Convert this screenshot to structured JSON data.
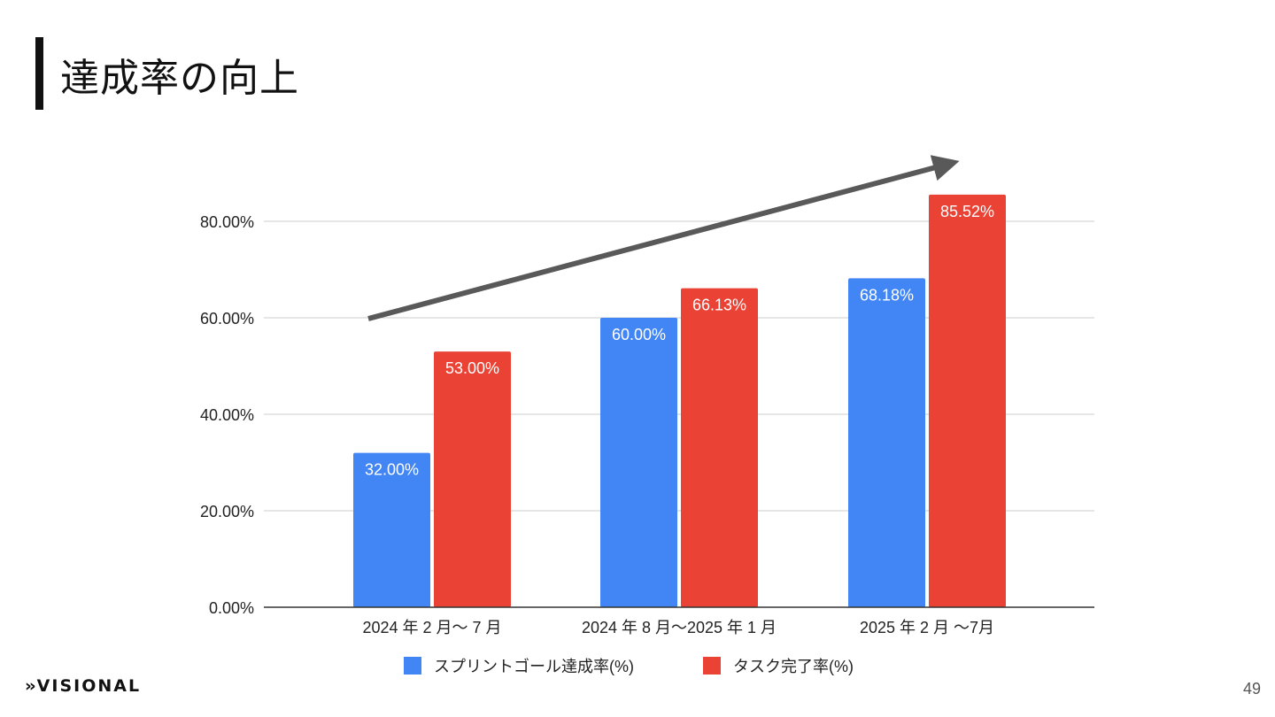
{
  "slide": {
    "title": "達成率の向上",
    "page_number": "49",
    "logo_text": "VISIONAL"
  },
  "colors": {
    "series1": "#4285f4",
    "series2": "#ea4335",
    "arrow": "#595959",
    "grid": "#cccccc"
  },
  "chart_data": {
    "type": "bar",
    "title": "",
    "xlabel": "",
    "ylabel": "",
    "ylim": [
      0,
      90
    ],
    "y_ticks": [
      0,
      20,
      40,
      60,
      80
    ],
    "y_tick_labels": [
      "0.00%",
      "20.00%",
      "40.00%",
      "60.00%",
      "80.00%"
    ],
    "categories": [
      "2024 年 2 月〜 7 月",
      "2024 年 8 月〜2025 年 1 月",
      "2025 年 2 月 〜7月"
    ],
    "series": [
      {
        "name": "スプリントゴール達成率(%)",
        "values": [
          32.0,
          60.0,
          68.18
        ],
        "labels": [
          "32.00%",
          "60.00%",
          "68.18%"
        ]
      },
      {
        "name": "タスク完了率(%)",
        "values": [
          53.0,
          66.13,
          85.52
        ],
        "labels": [
          "53.00%",
          "66.13%",
          "85.52%"
        ]
      }
    ],
    "grid": true,
    "legend_position": "bottom",
    "annotation": "upward trend arrow"
  }
}
